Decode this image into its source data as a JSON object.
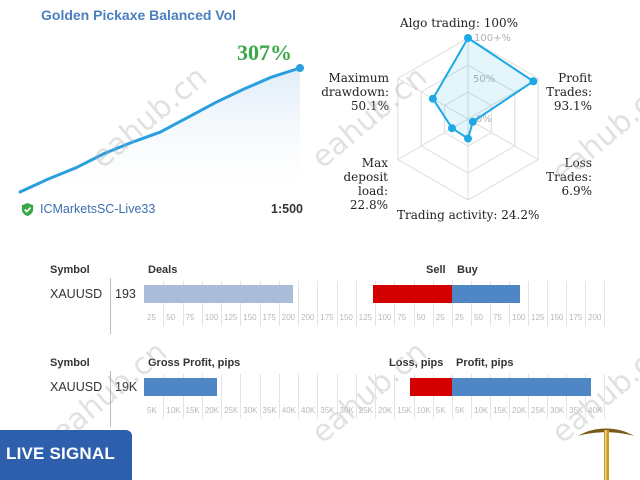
{
  "header": {
    "title": "Golden Pickaxe Balanced Vol",
    "growth": "307%",
    "account": "ICMarketsSC-Live33",
    "leverage": "1:500"
  },
  "colors": {
    "accent": "#4a7fc0",
    "growth": "#3aa84a",
    "deals_bar": "#a9bcd9",
    "sell_bar": "#d40000",
    "buy_bar": "#4f86c6",
    "radar": "#1da9e6",
    "badge": "#2d5fad"
  },
  "radar": {
    "labels": {
      "algo": "Algo trading: 100%",
      "profit_trades": "Profit\nTrades:\n93.1%",
      "loss_trades": "Loss\nTrades:\n6.9%",
      "activity": "Trading activity: 24.2%",
      "deposit_load": "Max\ndeposit\nload:\n22.8%",
      "drawdown": "Maximum\ndrawdown:\n50.1%"
    },
    "scale_labels": [
      "100+%",
      "50%",
      "0%"
    ]
  },
  "chart_data": [
    {
      "type": "radar",
      "axes": [
        "Algo trading",
        "Profit Trades",
        "Loss Trades",
        "Trading activity",
        "Max deposit load",
        "Maximum drawdown"
      ],
      "values": [
        100,
        93.1,
        6.9,
        24.2,
        22.8,
        50.1
      ],
      "scale_labels": [
        "100+%",
        "50%",
        "0%"
      ]
    },
    {
      "type": "area",
      "title": "",
      "x": [
        0,
        1,
        2,
        3,
        4,
        5,
        6,
        7,
        8,
        9,
        10
      ],
      "values": [
        0,
        32,
        60,
        95,
        123,
        148,
        185,
        222,
        255,
        285,
        307
      ],
      "end_label": "307%"
    },
    {
      "type": "bar",
      "title": "",
      "columns": [
        "Deals",
        "Sell",
        "Buy"
      ],
      "rows": [
        {
          "symbol": "XAUUSD",
          "deals": 193,
          "sell": 103,
          "buy": 90
        }
      ],
      "deals_ticks": [
        "25",
        "50",
        "75",
        "100",
        "125",
        "150",
        "175",
        "200"
      ],
      "sell_ticks": [
        "200",
        "175",
        "150",
        "125",
        "100",
        "75",
        "50",
        "25"
      ],
      "buy_ticks": [
        "25",
        "50",
        "75",
        "100",
        "125",
        "150",
        "175",
        "200"
      ]
    },
    {
      "type": "bar",
      "title": "",
      "columns": [
        "Gross Profit, pips",
        "Loss, pips",
        "Profit, pips"
      ],
      "rows": [
        {
          "symbol": "XAUUSD",
          "gross": "19K",
          "gross_value": 19000,
          "loss": 11000,
          "profit": 36500
        }
      ],
      "gross_ticks": [
        "5K",
        "10K",
        "15K",
        "20K",
        "25K",
        "30K",
        "35K",
        "40K"
      ],
      "loss_ticks": [
        "40K",
        "35K",
        "30K",
        "25K",
        "20K",
        "15K",
        "10K",
        "5K"
      ],
      "profit_ticks": [
        "5K",
        "10K",
        "15K",
        "20K",
        "25K",
        "30K",
        "35K",
        "40K"
      ]
    }
  ],
  "table1": {
    "symbol_header": "Symbol",
    "deals_header": "Deals",
    "sell_header": "Sell",
    "buy_header": "Buy",
    "symbol": "XAUUSD",
    "deals": "193"
  },
  "table2": {
    "symbol_header": "Symbol",
    "gross_header": "Gross Profit, pips",
    "loss_header": "Loss, pips",
    "profit_header": "Profit, pips",
    "symbol": "XAUUSD",
    "gross": "19K"
  },
  "badge": {
    "label": "LIVE SIGNAL"
  },
  "watermark": "eahub.cn"
}
